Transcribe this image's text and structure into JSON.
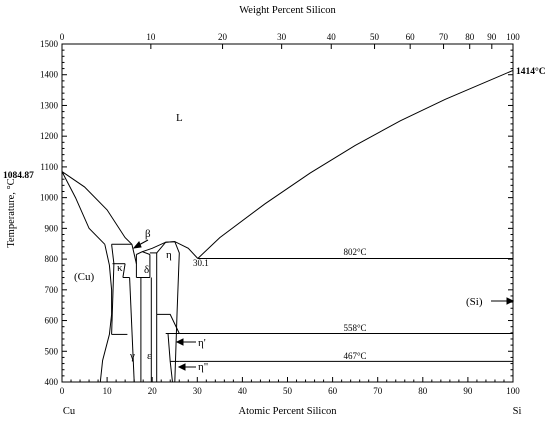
{
  "chart_data": {
    "type": "phase-diagram",
    "top_axis": {
      "label": "Weight Percent Silicon",
      "ticks": [
        "0",
        "10",
        "20",
        "30",
        "40",
        "50",
        "60",
        "70",
        "80",
        "90",
        "100"
      ],
      "tick_at_atomic_pct": [
        0,
        19.7,
        35.6,
        48.7,
        59.7,
        69.3,
        77.2,
        84.6,
        90.4,
        95.3,
        100
      ]
    },
    "x_axis": {
      "label": "Atomic Percent Silicon",
      "range": [
        0,
        100
      ],
      "ticks": [
        "0",
        "10",
        "20",
        "30",
        "40",
        "50",
        "60",
        "70",
        "80",
        "90",
        "100"
      ],
      "left_element": "Cu",
      "right_element": "Si"
    },
    "y_axis": {
      "label": "Temperature, °C",
      "range": [
        400,
        1500
      ],
      "ticks": [
        "400",
        "500",
        "600",
        "700",
        "800",
        "900",
        "1000",
        "1100",
        "1200",
        "1300",
        "1400",
        "1500"
      ]
    },
    "annotations": {
      "cu_melting": "1084.87",
      "si_melting": "1414°C",
      "eutectic_composition": "30.1",
      "iso_802": "802°C",
      "iso_558": "558°C",
      "iso_467": "467°C"
    },
    "phases": [
      "L",
      "(Cu)",
      "(Si)",
      "β",
      "κ",
      "δ",
      "η",
      "γ",
      "ε",
      "η'",
      "η\""
    ],
    "curves": [
      {
        "name": "liquidus-cu-side",
        "points": [
          [
            0,
            1084.87
          ],
          [
            5,
            1035
          ],
          [
            10,
            960
          ],
          [
            14,
            870
          ],
          [
            15.5,
            848
          ]
        ]
      },
      {
        "name": "solidus-cu-side",
        "points": [
          [
            0,
            1084.87
          ],
          [
            3,
            1000
          ],
          [
            6,
            900
          ],
          [
            9.5,
            848
          ]
        ]
      },
      {
        "name": "liquidus-eta",
        "points": [
          [
            17.8,
            824
          ],
          [
            20,
            835
          ],
          [
            23,
            855
          ],
          [
            25,
            857
          ],
          [
            28,
            835
          ],
          [
            30.1,
            802
          ]
        ]
      },
      {
        "name": "liquidus-si-side",
        "points": [
          [
            30.1,
            802
          ],
          [
            35,
            870
          ],
          [
            45,
            980
          ],
          [
            55,
            1080
          ],
          [
            65,
            1170
          ],
          [
            75,
            1250
          ],
          [
            85,
            1320
          ],
          [
            100,
            1414
          ]
        ]
      },
      {
        "name": "isotherm-802",
        "points": [
          [
            30.1,
            802
          ],
          [
            100,
            802
          ]
        ]
      },
      {
        "name": "isotherm-558",
        "points": [
          [
            26,
            558
          ],
          [
            100,
            558
          ]
        ]
      },
      {
        "name": "isotherm-467",
        "points": [
          [
            26,
            467
          ],
          [
            100,
            467
          ]
        ]
      }
    ]
  },
  "labels": {
    "L": "L",
    "Cu_phase": "(Cu)",
    "Si_phase": "(Si)",
    "beta": "β",
    "kappa": "κ",
    "delta": "δ",
    "eta": "η",
    "gamma": "γ",
    "epsilon": "ε",
    "eta_prime": "η'",
    "eta_dprime": "η\""
  }
}
